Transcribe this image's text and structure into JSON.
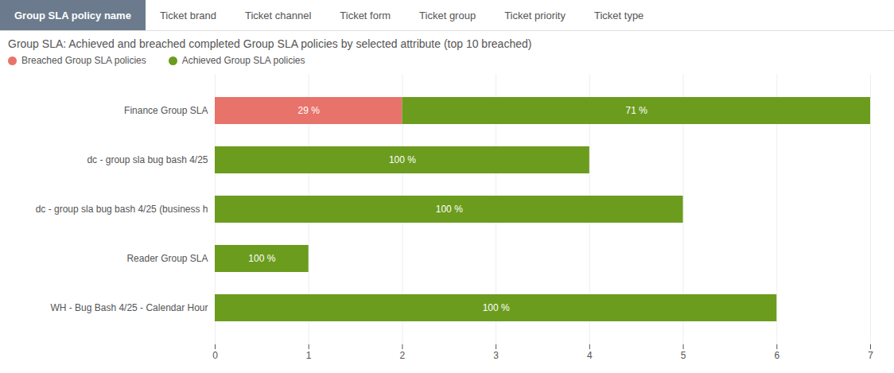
{
  "chart_data": {
    "type": "bar",
    "orientation": "horizontal",
    "stacked": true,
    "title": "Group SLA: Achieved and breached completed Group SLA policies by selected attribute (top 10 breached)",
    "tabs": [
      "Group SLA policy name",
      "Ticket brand",
      "Ticket channel",
      "Ticket form",
      "Ticket group",
      "Ticket priority",
      "Ticket type"
    ],
    "active_tab": "Group SLA policy name",
    "categories": [
      "Finance Group SLA",
      "dc - group sla bug bash 4/25",
      "dc - group sla bug bash 4/25 (business h",
      "Reader Group SLA",
      "WH - Bug Bash 4/25 - Calendar Hour"
    ],
    "series": [
      {
        "name": "Breached Group SLA policies",
        "color": "#e8736a",
        "values": [
          2.0,
          0,
          0,
          0,
          0
        ],
        "share_labels": [
          "29 %",
          null,
          null,
          null,
          null
        ]
      },
      {
        "name": "Achieved Group SLA policies",
        "color": "#6b9c1e",
        "values": [
          5.0,
          4.0,
          5.0,
          1.0,
          6.0
        ],
        "share_labels": [
          "71 %",
          "100 %",
          "100 %",
          "100 %",
          "100 %"
        ]
      }
    ],
    "xlim": [
      0,
      7
    ],
    "xticks": [
      0,
      1,
      2,
      3,
      4,
      5,
      6,
      7
    ],
    "grid": true,
    "legend": "top left"
  }
}
